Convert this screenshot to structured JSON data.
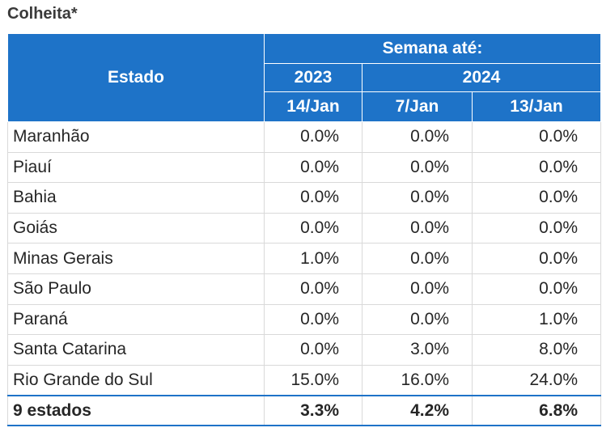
{
  "title": "Colheita*",
  "header": {
    "estado": "Estado",
    "semana": "Semana até:",
    "year_2023": "2023",
    "year_2024": "2024",
    "dates": [
      "14/Jan",
      "7/Jan",
      "13/Jan"
    ]
  },
  "rows": [
    {
      "estado": "Maranhão",
      "v": [
        "0.0%",
        "0.0%",
        "0.0%"
      ]
    },
    {
      "estado": "Piauí",
      "v": [
        "0.0%",
        "0.0%",
        "0.0%"
      ]
    },
    {
      "estado": "Bahia",
      "v": [
        "0.0%",
        "0.0%",
        "0.0%"
      ]
    },
    {
      "estado": "Goiás",
      "v": [
        "0.0%",
        "0.0%",
        "0.0%"
      ]
    },
    {
      "estado": "Minas Gerais",
      "v": [
        "1.0%",
        "0.0%",
        "0.0%"
      ]
    },
    {
      "estado": "São Paulo",
      "v": [
        "0.0%",
        "0.0%",
        "0.0%"
      ]
    },
    {
      "estado": "Paraná",
      "v": [
        "0.0%",
        "0.0%",
        "1.0%"
      ]
    },
    {
      "estado": "Santa Catarina",
      "v": [
        "0.0%",
        "3.0%",
        "8.0%"
      ]
    },
    {
      "estado": "Rio Grande do Sul",
      "v": [
        "15.0%",
        "16.0%",
        "24.0%"
      ]
    }
  ],
  "total": {
    "estado": "9 estados",
    "v": [
      "3.3%",
      "4.2%",
      "6.8%"
    ]
  },
  "colors": {
    "header_bg": "#1e73c8",
    "header_text": "#ffffff"
  }
}
